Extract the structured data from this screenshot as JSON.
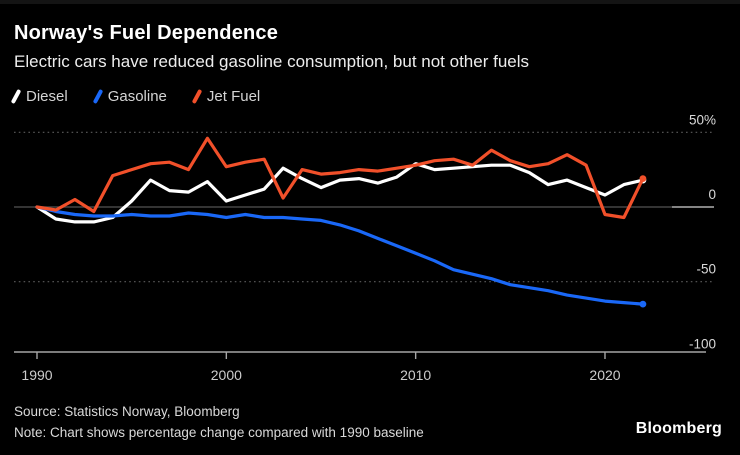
{
  "header": {
    "title": "Norway's Fuel Dependence",
    "subtitle": "Electric cars have reduced gasoline consumption, but not other fuels"
  },
  "legend": [
    {
      "label": "Diesel",
      "color": "#ffffff"
    },
    {
      "label": "Gasoline",
      "color": "#1a68f7"
    },
    {
      "label": "Jet Fuel",
      "color": "#f1502a"
    }
  ],
  "chart_data": {
    "type": "line",
    "x": [
      1990,
      1991,
      1992,
      1993,
      1994,
      1995,
      1996,
      1997,
      1998,
      1999,
      2000,
      2001,
      2002,
      2003,
      2004,
      2005,
      2006,
      2007,
      2008,
      2009,
      2010,
      2011,
      2012,
      2013,
      2014,
      2015,
      2016,
      2017,
      2018,
      2019,
      2020,
      2021,
      2022
    ],
    "series": [
      {
        "name": "Diesel",
        "color": "#ffffff",
        "values": [
          0,
          -8,
          -10,
          -10,
          -7,
          4,
          18,
          11,
          10,
          17,
          4,
          8,
          12,
          26,
          19,
          13,
          18,
          19,
          16,
          20,
          29,
          25,
          26,
          27,
          28,
          28,
          23,
          15,
          18,
          13,
          8,
          15,
          18
        ]
      },
      {
        "name": "Gasoline",
        "color": "#1a68f7",
        "values": [
          0,
          -3,
          -5,
          -6,
          -6,
          -5,
          -6,
          -6,
          -4,
          -5,
          -7,
          -5,
          -7,
          -7,
          -8,
          -9,
          -12,
          -16,
          -21,
          -26,
          -31,
          -36,
          -42,
          -45,
          -48,
          -52,
          -54,
          -56,
          -59,
          -61,
          -63,
          -64,
          -65
        ]
      },
      {
        "name": "Jet Fuel",
        "color": "#f1502a",
        "values": [
          0,
          -2,
          5,
          -3,
          21,
          25,
          29,
          30,
          25,
          46,
          27,
          30,
          32,
          6,
          25,
          22,
          23,
          25,
          24,
          26,
          28,
          31,
          32,
          28,
          38,
          31,
          27,
          29,
          35,
          28,
          -5,
          -7,
          19
        ]
      }
    ],
    "title": "Norway's Fuel Dependence",
    "xlabel": "",
    "ylabel": "",
    "ylim": [
      -100,
      50
    ],
    "yticks": [
      {
        "value": 50,
        "label": "50%"
      },
      {
        "value": 0,
        "label": "0"
      },
      {
        "value": -50,
        "label": "-50"
      },
      {
        "value": -100,
        "label": "-100"
      }
    ],
    "xticks": [
      1990,
      2000,
      2010,
      2020
    ],
    "grid": "dotted horizontal at 50 and -50, solid zero line, legend top-left"
  },
  "footer": {
    "source": "Source: Statistics Norway, Bloomberg",
    "note": "Note: Chart shows percentage change compared with 1990 baseline",
    "logo": "Bloomberg"
  }
}
